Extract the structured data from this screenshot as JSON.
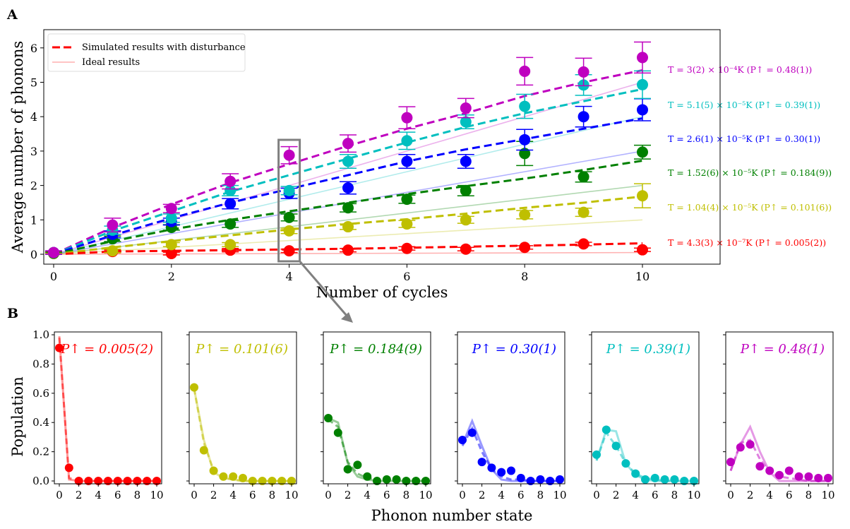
{
  "panel_labels": [
    "A",
    "B"
  ],
  "chart_data": [
    {
      "type": "line",
      "panel": "A",
      "xlabel": "Number of cycles",
      "ylabel": "Average number of phonons",
      "xlim": [
        -0.2,
        11.1
      ],
      "ylim": [
        -0.3,
        6.5
      ],
      "xticks": [
        0,
        2,
        4,
        6,
        8,
        10
      ],
      "yticks": [
        0,
        1,
        2,
        3,
        4,
        5,
        6
      ],
      "grid": false,
      "legend": {
        "placement": "top-left",
        "entries": [
          "Simulated results with disturbance",
          "Ideal results"
        ]
      },
      "highlight_box_x": 4,
      "x": [
        0,
        1,
        2,
        3,
        4,
        5,
        6,
        7,
        8,
        9,
        10
      ],
      "series": [
        {
          "label": "T = 3(2) × 10⁻⁴K (P↑ = 0.48(1))",
          "color": "#bf00bf",
          "measured": [
            0.05,
            0.85,
            1.33,
            2.12,
            2.88,
            3.22,
            3.97,
            4.25,
            5.32,
            5.3,
            5.72
          ],
          "error": [
            0.05,
            0.2,
            0.12,
            0.22,
            0.25,
            0.25,
            0.32,
            0.28,
            0.4,
            0.4,
            0.45
          ],
          "simulated": [
            0,
            0.78,
            1.45,
            2.08,
            2.62,
            3.15,
            3.65,
            4.1,
            4.6,
            5.0,
            5.35
          ],
          "ideal": [
            0,
            0.5,
            1.0,
            1.5,
            2.0,
            2.5,
            3.0,
            3.5,
            4.0,
            4.5,
            5.0
          ]
        },
        {
          "label": "T = 5.1(5) × 10⁻⁵K (P↑ = 0.39(1))",
          "color": "#00bfbf",
          "measured": [
            0.05,
            0.7,
            1.05,
            1.85,
            1.85,
            2.7,
            3.3,
            3.85,
            4.3,
            4.92,
            4.93
          ],
          "error": [
            0.05,
            0.12,
            0.12,
            0.15,
            0.12,
            0.2,
            0.25,
            0.2,
            0.35,
            0.3,
            0.4
          ],
          "simulated": [
            0,
            0.68,
            1.25,
            1.82,
            2.3,
            2.78,
            3.25,
            3.7,
            4.1,
            4.45,
            4.8
          ],
          "ideal": [
            0,
            0.4,
            0.8,
            1.2,
            1.6,
            2.0,
            2.4,
            2.8,
            3.2,
            3.6,
            4.0
          ]
        },
        {
          "label": "T = 2.6(1) × 10⁻⁵K (P↑ = 0.30(1))",
          "color": "#0000ff",
          "measured": [
            0.05,
            0.58,
            0.95,
            1.47,
            1.77,
            1.93,
            2.7,
            2.7,
            3.33,
            4.0,
            4.2
          ],
          "error": [
            0.05,
            0.1,
            0.1,
            0.15,
            0.15,
            0.18,
            0.2,
            0.2,
            0.3,
            0.3,
            0.32
          ],
          "simulated": [
            0,
            0.55,
            1.05,
            1.5,
            1.9,
            2.3,
            2.7,
            3.05,
            3.35,
            3.65,
            3.95
          ],
          "ideal": [
            0,
            0.3,
            0.6,
            0.9,
            1.2,
            1.5,
            1.8,
            2.1,
            2.4,
            2.7,
            3.0
          ]
        },
        {
          "label": "T = 1.52(6) × 10⁻⁵K (P↑ = 0.184(9))",
          "color": "#008000",
          "measured": [
            0.03,
            0.45,
            0.78,
            0.88,
            1.07,
            1.35,
            1.6,
            1.85,
            2.93,
            2.25,
            2.97
          ],
          "error": [
            0.03,
            0.08,
            0.08,
            0.1,
            0.1,
            0.12,
            0.12,
            0.15,
            0.35,
            0.15,
            0.2
          ],
          "simulated": [
            0,
            0.38,
            0.72,
            1.0,
            1.25,
            1.5,
            1.75,
            1.98,
            2.2,
            2.45,
            2.72
          ],
          "ideal": [
            0,
            0.2,
            0.4,
            0.6,
            0.8,
            1.0,
            1.2,
            1.4,
            1.6,
            1.8,
            2.0
          ]
        },
        {
          "label": "T = 1.04(4) × 10⁻⁵K (P↑ = 0.101(6))",
          "color": "#bfbf00",
          "measured": [
            0.02,
            0.1,
            0.28,
            0.28,
            0.68,
            0.8,
            0.88,
            1.0,
            1.15,
            1.22,
            1.7
          ],
          "error": [
            0.02,
            0.05,
            0.06,
            0.06,
            0.08,
            0.08,
            0.1,
            0.1,
            0.12,
            0.12,
            0.35
          ],
          "simulated": [
            0,
            0.2,
            0.38,
            0.55,
            0.72,
            0.88,
            1.02,
            1.18,
            1.35,
            1.5,
            1.68
          ],
          "ideal": [
            0,
            0.1,
            0.2,
            0.3,
            0.4,
            0.5,
            0.6,
            0.7,
            0.8,
            0.9,
            1.0
          ]
        },
        {
          "label": "T = 4.3(3) × 10⁻⁷K (P↑ = 0.005(2))",
          "color": "#ff0000",
          "measured": [
            0.05,
            0.08,
            0.02,
            0.12,
            0.1,
            0.12,
            0.17,
            0.15,
            0.2,
            0.3,
            0.13
          ],
          "error": [
            0.03,
            0.04,
            0.04,
            0.05,
            0.05,
            0.05,
            0.05,
            0.05,
            0.05,
            0.05,
            0.05
          ],
          "simulated": [
            0,
            0.08,
            0.1,
            0.12,
            0.14,
            0.16,
            0.19,
            0.22,
            0.25,
            0.28,
            0.32
          ],
          "ideal": [
            0,
            0.005,
            0.01,
            0.015,
            0.02,
            0.025,
            0.03,
            0.035,
            0.04,
            0.045,
            0.05
          ]
        }
      ]
    },
    {
      "type": "line",
      "panel": "B",
      "xlabel": "Phonon number state",
      "ylabel": "Population",
      "xlim": [
        -0.5,
        10.5
      ],
      "ylim": [
        -0.03,
        1.0
      ],
      "xticks": [
        0,
        2,
        4,
        6,
        8,
        10
      ],
      "yticks": [
        "0.0",
        "0.2",
        "0.4",
        "0.6",
        "0.8",
        "1.0"
      ],
      "x": [
        0,
        1,
        2,
        3,
        4,
        5,
        6,
        7,
        8,
        9,
        10
      ],
      "subplots": [
        {
          "title": "P↑ = 0.005(2)",
          "color": "#ff0000",
          "measured": [
            0.91,
            0.09,
            0,
            0,
            0,
            0,
            0,
            0,
            0,
            0,
            0
          ],
          "simulated": [
            0.98,
            0.02,
            0.0,
            0,
            0,
            0,
            0,
            0,
            0,
            0,
            0
          ],
          "ideal": [
            0.99,
            0.01,
            0,
            0,
            0,
            0,
            0,
            0,
            0,
            0,
            0
          ]
        },
        {
          "title": "P↑ = 0.101(6)",
          "color": "#bfbf00",
          "measured": [
            0.64,
            0.21,
            0.07,
            0.03,
            0.03,
            0.02,
            0,
            0,
            0,
            0,
            0
          ],
          "simulated": [
            0.63,
            0.26,
            0.07,
            0.02,
            0.01,
            0,
            0,
            0,
            0,
            0,
            0
          ],
          "ideal": [
            0.63,
            0.28,
            0.06,
            0.02,
            0.01,
            0,
            0,
            0,
            0,
            0,
            0
          ]
        },
        {
          "title": "P↑ = 0.184(9)",
          "color": "#008000",
          "measured": [
            0.43,
            0.33,
            0.08,
            0.11,
            0.03,
            0,
            0.01,
            0.01,
            0,
            0,
            0
          ],
          "simulated": [
            0.42,
            0.37,
            0.13,
            0.05,
            0.02,
            0.01,
            0,
            0,
            0,
            0,
            0
          ],
          "ideal": [
            0.43,
            0.4,
            0.12,
            0.03,
            0.01,
            0,
            0,
            0,
            0,
            0,
            0
          ]
        },
        {
          "title": "P↑ = 0.30(1)",
          "color": "#0000ff",
          "measured": [
            0.28,
            0.33,
            0.13,
            0.09,
            0.06,
            0.07,
            0.02,
            0,
            0.01,
            0,
            0.01
          ],
          "simulated": [
            0.24,
            0.36,
            0.2,
            0.08,
            0.03,
            0.01,
            0.01,
            0,
            0,
            0,
            0
          ],
          "ideal": [
            0.25,
            0.41,
            0.24,
            0.08,
            0.01,
            0,
            0,
            0,
            0,
            0,
            0
          ]
        },
        {
          "title": "P↑ = 0.39(1)",
          "color": "#00bfbf",
          "measured": [
            0.18,
            0.35,
            0.24,
            0.12,
            0.05,
            0.01,
            0.02,
            0.01,
            0.01,
            0,
            0
          ],
          "simulated": [
            0.14,
            0.33,
            0.24,
            0.12,
            0.05,
            0.02,
            0.01,
            0,
            0,
            0,
            0
          ],
          "ideal": [
            0.14,
            0.35,
            0.34,
            0.12,
            0.04,
            0.01,
            0,
            0,
            0,
            0,
            0
          ]
        },
        {
          "title": "P↑ = 0.48(1)",
          "color": "#bf00bf",
          "measured": [
            0.13,
            0.23,
            0.25,
            0.1,
            0.07,
            0.04,
            0.07,
            0.03,
            0.03,
            0.02,
            0.02
          ],
          "simulated": [
            0.07,
            0.26,
            0.28,
            0.15,
            0.06,
            0.03,
            0.02,
            0.01,
            0,
            0,
            0
          ],
          "ideal": [
            0.07,
            0.25,
            0.37,
            0.2,
            0.06,
            0,
            0,
            0,
            0,
            0,
            0
          ]
        }
      ]
    }
  ]
}
